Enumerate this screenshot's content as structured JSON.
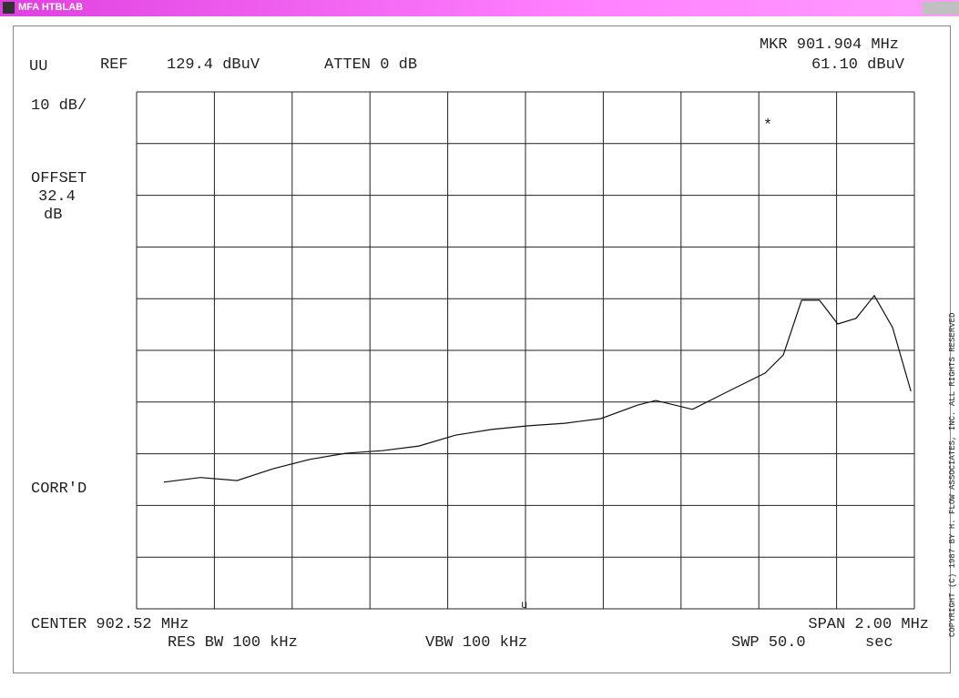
{
  "window_title": "MFA HTBLAB",
  "header": {
    "mode": "UU",
    "ref_label": "REF",
    "ref": "129.4 dBuV",
    "atten": "ATTEN 0 dB",
    "marker": "MKR 901.904 MHz",
    "marker_level": "61.10 dBuV"
  },
  "left_labels": {
    "scale": "10 dB/",
    "offset": "OFFSET",
    "offset_value": "32.4",
    "offset_unit": "dB",
    "corr": "CORR'D"
  },
  "footer": {
    "center": "CENTER 902.52 MHz",
    "span": "SPAN 2.00 MHz",
    "rbw": "RES BW 100 kHz",
    "vbw": "VBW 100 kHz",
    "sweep": "SWP 50.0",
    "sweep_unit": "sec"
  },
  "marker_symbol": "*",
  "center_mark": "u",
  "side_note": "COPYRIGHT (C) 1987 BY H. FLOW ASSOCIATES, INC. ALL RIGHTS RESERVED",
  "chart_data": {
    "type": "line",
    "color": "#111",
    "x": [
      901.59,
      901.684,
      901.778,
      901.871,
      901.965,
      902.059,
      902.152,
      902.246,
      902.34,
      902.433,
      902.527,
      902.621,
      902.714,
      902.808,
      902.855,
      902.949,
      903.042,
      903.136,
      903.183,
      903.23,
      903.276,
      903.323,
      903.37,
      903.417,
      903.464,
      903.511
    ],
    "values": [
      53.9,
      54.8,
      54.2,
      56.5,
      58.3,
      59.5,
      60.0,
      60.9,
      63.0,
      64.1,
      64.8,
      65.3,
      66.2,
      68.8,
      69.7,
      68.0,
      71.5,
      75.0,
      78.5,
      89.1,
      89.1,
      84.5,
      85.6,
      90.0,
      83.8,
      71.5
    ],
    "xlim": [
      901.52,
      903.52
    ],
    "ylim": [
      29.4,
      129.4
    ]
  }
}
